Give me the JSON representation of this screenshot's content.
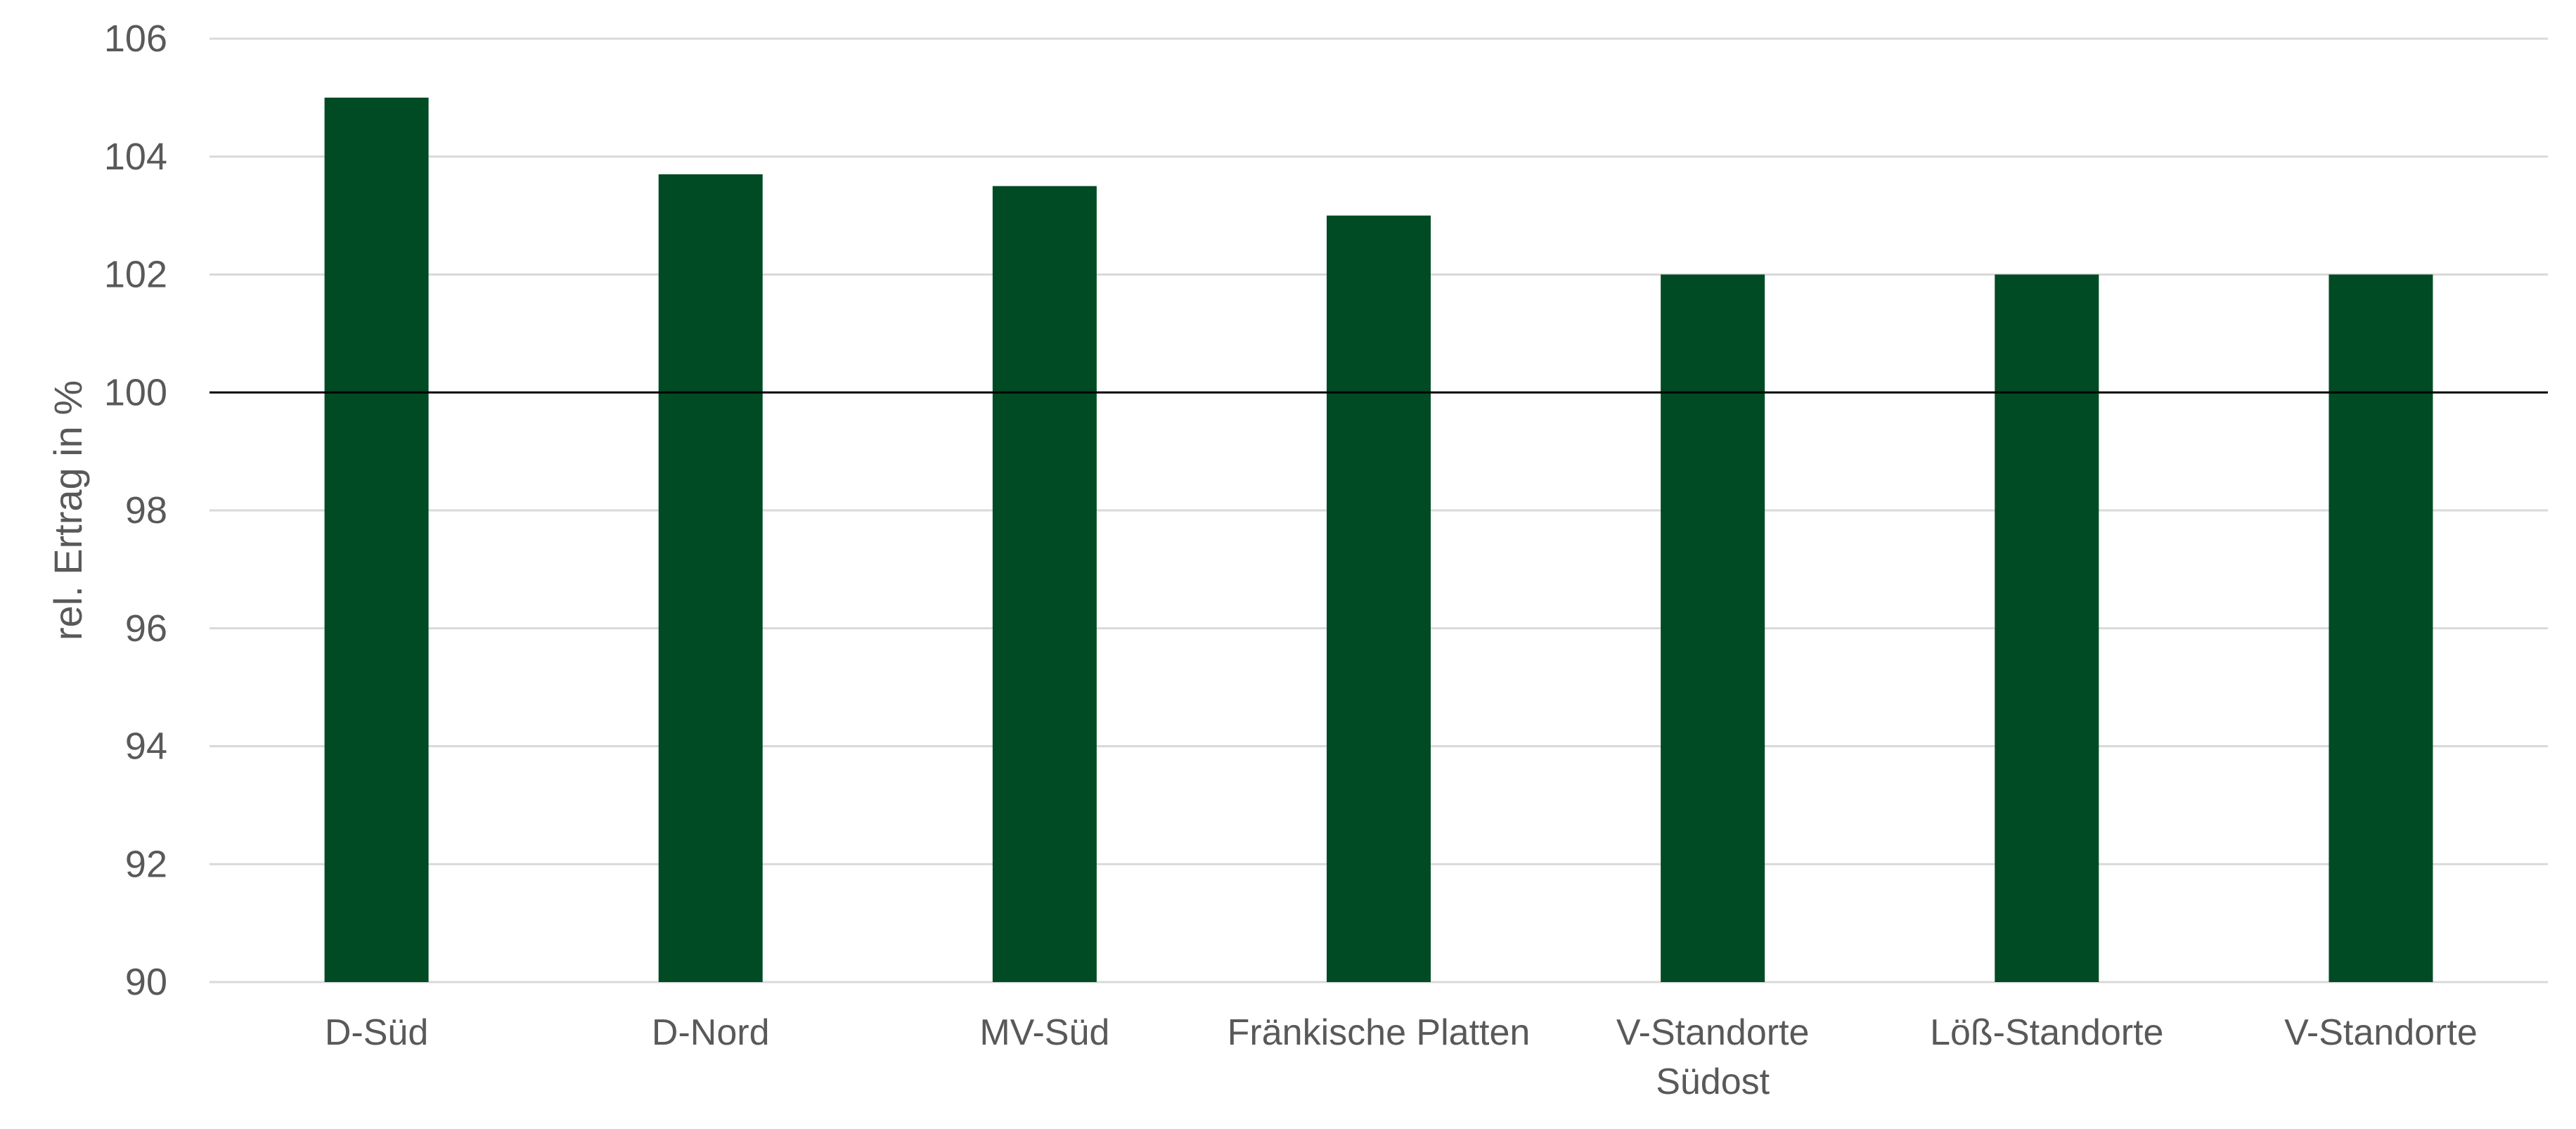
{
  "chart_data": {
    "type": "bar",
    "categories": [
      [
        "D-Süd"
      ],
      [
        "D-Nord"
      ],
      [
        "MV-Süd"
      ],
      [
        "Fränkische Platten"
      ],
      [
        "V-Standorte",
        "Südost"
      ],
      [
        "Löß-Standorte"
      ],
      [
        "V-Standorte"
      ]
    ],
    "values": [
      105.0,
      103.7,
      103.5,
      103.0,
      102.0,
      102.0,
      102.0
    ],
    "ylabel": "rel. Ertrag in %",
    "xlabel": "",
    "title": "",
    "ylim": [
      90,
      106
    ],
    "yticks": [
      90,
      92,
      94,
      96,
      98,
      100,
      102,
      104,
      106
    ],
    "reference_line": 100,
    "grid": true,
    "legend": false,
    "colors": {
      "bar": "#004b23",
      "grid": "#d9d9d9",
      "reference_line": "#000000",
      "text": "#595959"
    }
  }
}
